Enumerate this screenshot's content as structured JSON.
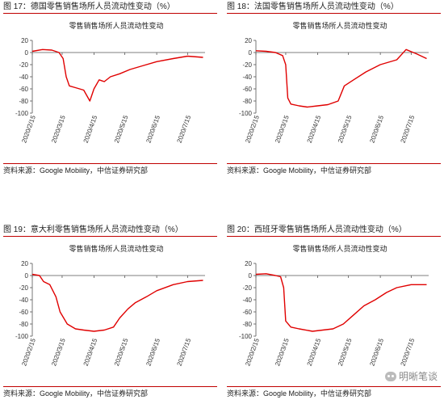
{
  "chart_data": [
    {
      "type": "line",
      "figure_label": "图 17：德国零售销售场所人员流动性变动（%）",
      "title": "零售销售场所人员流动性变动",
      "source": "资料来源：Google Mobility，中信证券研究部",
      "x_ticks": [
        "2020/2/15",
        "2020/3/15",
        "2020/4/15",
        "2020/5/15",
        "2020/6/15",
        "2020/7/15"
      ],
      "ylim": [
        -100,
        20
      ],
      "y_ticks": [
        20,
        0,
        -20,
        -40,
        -60,
        -80,
        -100
      ],
      "line_color": "#e00000",
      "series": [
        {
          "x": [
            "2020/2/15",
            "2020/2/25",
            "2020/3/5",
            "2020/3/12",
            "2020/3/16",
            "2020/3/19",
            "2020/3/22",
            "2020/3/28",
            "2020/4/5",
            "2020/4/11",
            "2020/4/15",
            "2020/4/20",
            "2020/4/25",
            "2020/5/1",
            "2020/5/10",
            "2020/5/20",
            "2020/6/1",
            "2020/6/15",
            "2020/7/1",
            "2020/7/15",
            "2020/7/30"
          ],
          "values": [
            2,
            5,
            4,
            0,
            -10,
            -40,
            -55,
            -58,
            -62,
            -80,
            -60,
            -45,
            -48,
            -40,
            -35,
            -28,
            -22,
            -15,
            -10,
            -6,
            -8
          ]
        }
      ]
    },
    {
      "type": "line",
      "figure_label": "图 18：法国零售销售场所人员流动性变动（%）",
      "title": "零售销售场所人员流动性变动",
      "source": "资料来源：Google Mobility，中信证券研究部",
      "x_ticks": [
        "2020/2/15",
        "2020/3/15",
        "2020/4/15",
        "2020/5/15",
        "2020/6/15",
        "2020/7/15"
      ],
      "ylim": [
        -100,
        20
      ],
      "y_ticks": [
        20,
        0,
        -20,
        -40,
        -60,
        -80,
        -100
      ],
      "line_color": "#e00000",
      "series": [
        {
          "x": [
            "2020/2/15",
            "2020/2/25",
            "2020/3/5",
            "2020/3/12",
            "2020/3/15",
            "2020/3/17",
            "2020/3/20",
            "2020/3/28",
            "2020/4/5",
            "2020/4/15",
            "2020/4/25",
            "2020/5/5",
            "2020/5/11",
            "2020/5/20",
            "2020/6/1",
            "2020/6/15",
            "2020/7/1",
            "2020/7/10",
            "2020/7/20",
            "2020/7/30"
          ],
          "values": [
            3,
            2,
            0,
            -5,
            -20,
            -75,
            -85,
            -88,
            -90,
            -88,
            -86,
            -80,
            -55,
            -45,
            -32,
            -20,
            -12,
            5,
            -2,
            -10
          ]
        }
      ]
    },
    {
      "type": "line",
      "figure_label": "图 19：意大利零售销售场所人员流动性变动（%）",
      "title": "零售销售场所人员流动性变动",
      "source": "资料来源：Google Mobility，中信证券研究部",
      "x_ticks": [
        "2020/2/15",
        "2020/3/15",
        "2020/4/15",
        "2020/5/15",
        "2020/6/15",
        "2020/7/15"
      ],
      "ylim": [
        -100,
        20
      ],
      "y_ticks": [
        20,
        0,
        -20,
        -40,
        -60,
        -80,
        -100
      ],
      "line_color": "#e00000",
      "series": [
        {
          "x": [
            "2020/2/15",
            "2020/2/22",
            "2020/2/26",
            "2020/3/3",
            "2020/3/9",
            "2020/3/13",
            "2020/3/20",
            "2020/3/28",
            "2020/4/5",
            "2020/4/15",
            "2020/4/25",
            "2020/5/4",
            "2020/5/10",
            "2020/5/18",
            "2020/5/25",
            "2020/6/5",
            "2020/6/15",
            "2020/7/1",
            "2020/7/15",
            "2020/7/30"
          ],
          "values": [
            2,
            0,
            -10,
            -15,
            -35,
            -60,
            -80,
            -88,
            -90,
            -92,
            -90,
            -85,
            -70,
            -55,
            -45,
            -35,
            -25,
            -15,
            -10,
            -8
          ]
        }
      ]
    },
    {
      "type": "line",
      "figure_label": "图 20：西班牙零售销售场所人员流动性变动（%）",
      "title": "零售销售场所人员流动性变动",
      "source": "资料来源：Google Mobility，中信证券研究部",
      "x_ticks": [
        "2020/2/15",
        "2020/3/15",
        "2020/4/15",
        "2020/5/15",
        "2020/6/15",
        "2020/7/15"
      ],
      "ylim": [
        -100,
        20
      ],
      "y_ticks": [
        20,
        0,
        -20,
        -40,
        -60,
        -80,
        -100
      ],
      "line_color": "#e00000",
      "series": [
        {
          "x": [
            "2020/2/15",
            "2020/2/25",
            "2020/3/5",
            "2020/3/10",
            "2020/3/13",
            "2020/3/15",
            "2020/3/20",
            "2020/3/28",
            "2020/4/10",
            "2020/4/20",
            "2020/4/30",
            "2020/5/10",
            "2020/5/20",
            "2020/5/30",
            "2020/6/10",
            "2020/6/21",
            "2020/7/1",
            "2020/7/15",
            "2020/7/30"
          ],
          "values": [
            2,
            3,
            0,
            -2,
            -20,
            -75,
            -85,
            -88,
            -92,
            -90,
            -88,
            -80,
            -65,
            -50,
            -40,
            -28,
            -20,
            -15,
            -15
          ]
        }
      ]
    }
  ],
  "watermark": "明晰笔谈"
}
